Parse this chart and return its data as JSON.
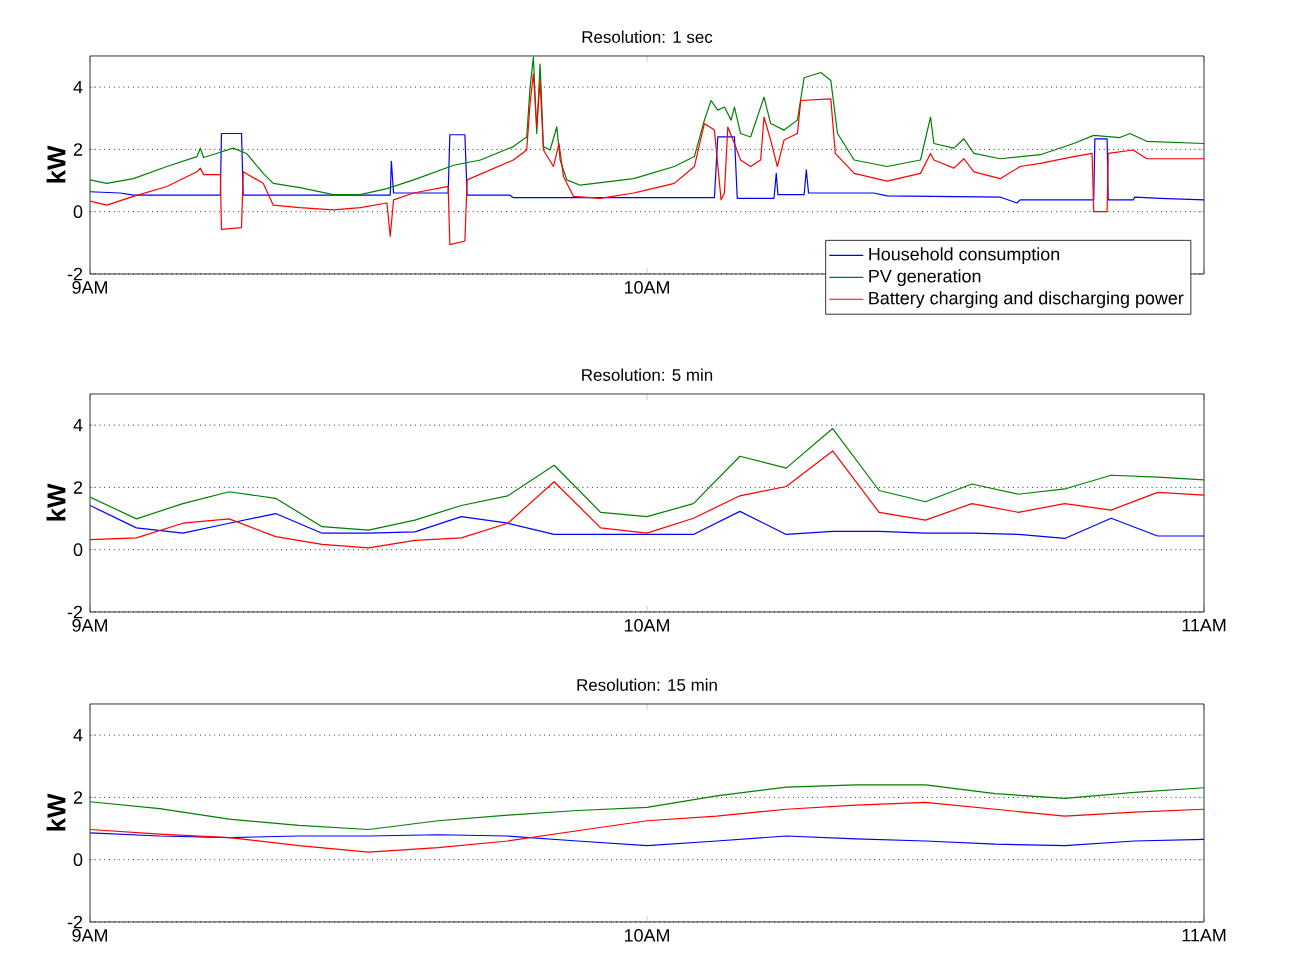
{
  "chart_data": [
    {
      "type": "line",
      "title": "Resolution: 1 sec",
      "ylabel": "kW",
      "xlim": [
        9,
        11
      ],
      "ylim": [
        -2,
        5
      ],
      "xticks": [
        {
          "value": 9,
          "label": "9AM"
        },
        {
          "value": 10,
          "label": "10AM"
        },
        {
          "value": 11,
          "label": null
        }
      ],
      "yticks": [
        -2,
        0,
        2,
        4
      ],
      "grid": "y",
      "legend": "bottom right",
      "marker": "none",
      "line_style": "solid",
      "series": [
        {
          "name": "Household consumption",
          "color": "#0000ff",
          "x": [
            9.0,
            9.054,
            9.078,
            9.234,
            9.236,
            9.272,
            9.275,
            9.539,
            9.541,
            9.545,
            9.643,
            9.646,
            9.673,
            9.677,
            9.754,
            9.76,
            10.0,
            10.121,
            10.127,
            10.157,
            10.162,
            10.228,
            10.232,
            10.235,
            10.282,
            10.286,
            10.29,
            10.407,
            10.431,
            10.634,
            10.664,
            10.67,
            10.802,
            10.804,
            10.826,
            10.828,
            10.873,
            10.876,
            10.921,
            11.0
          ],
          "values": [
            0.64,
            0.6,
            0.53,
            0.53,
            2.51,
            2.51,
            0.53,
            0.53,
            1.62,
            0.6,
            0.6,
            2.47,
            2.47,
            0.53,
            0.53,
            0.45,
            0.45,
            0.45,
            2.4,
            2.4,
            0.43,
            0.43,
            1.23,
            0.55,
            0.55,
            1.34,
            0.6,
            0.6,
            0.51,
            0.47,
            0.28,
            0.38,
            0.38,
            2.34,
            2.34,
            0.38,
            0.38,
            0.47,
            0.43,
            0.38
          ]
        },
        {
          "name": "PV generation",
          "color": "#008000",
          "x": [
            9.0,
            9.03,
            9.078,
            9.138,
            9.192,
            9.198,
            9.204,
            9.234,
            9.257,
            9.281,
            9.311,
            9.329,
            9.377,
            9.437,
            9.485,
            9.533,
            9.581,
            9.653,
            9.701,
            9.76,
            9.784,
            9.79,
            9.796,
            9.802,
            9.808,
            9.814,
            9.826,
            9.838,
            9.844,
            9.856,
            9.88,
            9.976,
            10.0,
            10.049,
            10.085,
            10.103,
            10.115,
            10.127,
            10.139,
            10.151,
            10.157,
            10.168,
            10.186,
            10.21,
            10.222,
            10.246,
            10.27,
            10.282,
            10.312,
            10.33,
            10.342,
            10.372,
            10.431,
            10.491,
            10.509,
            10.515,
            10.551,
            10.569,
            10.587,
            10.634,
            10.706,
            10.766,
            10.802,
            10.849,
            10.867,
            10.897,
            11.0
          ],
          "values": [
            1.02,
            0.91,
            1.06,
            1.45,
            1.77,
            2.04,
            1.74,
            1.91,
            2.04,
            1.87,
            1.23,
            0.91,
            0.77,
            0.55,
            0.55,
            0.74,
            1.02,
            1.49,
            1.66,
            2.09,
            2.4,
            4.0,
            4.96,
            2.51,
            4.74,
            2.09,
            1.98,
            2.72,
            1.66,
            1.02,
            0.85,
            1.06,
            1.19,
            1.45,
            1.77,
            2.94,
            3.57,
            3.26,
            3.36,
            2.94,
            3.36,
            2.51,
            2.4,
            3.68,
            2.83,
            2.62,
            2.94,
            4.3,
            4.47,
            4.21,
            2.51,
            1.66,
            1.45,
            1.66,
            3.04,
            2.19,
            2.04,
            2.34,
            1.87,
            1.7,
            1.83,
            2.19,
            2.45,
            2.38,
            2.51,
            2.26,
            2.19
          ]
        },
        {
          "name": "Battery charging and discharging power",
          "color": "#ff0000",
          "x": [
            9.0,
            9.03,
            9.078,
            9.138,
            9.192,
            9.198,
            9.204,
            9.234,
            9.236,
            9.272,
            9.275,
            9.311,
            9.329,
            9.377,
            9.437,
            9.485,
            9.533,
            9.539,
            9.545,
            9.581,
            9.643,
            9.646,
            9.673,
            9.677,
            9.76,
            9.784,
            9.79,
            9.796,
            9.802,
            9.808,
            9.814,
            9.832,
            9.842,
            9.85,
            9.868,
            9.916,
            9.976,
            10.0,
            10.049,
            10.085,
            10.103,
            10.121,
            10.133,
            10.139,
            10.145,
            10.157,
            10.168,
            10.186,
            10.204,
            10.21,
            10.222,
            10.234,
            10.246,
            10.27,
            10.276,
            10.33,
            10.338,
            10.372,
            10.431,
            10.491,
            10.509,
            10.515,
            10.551,
            10.569,
            10.587,
            10.634,
            10.67,
            10.706,
            10.766,
            10.799,
            10.802,
            10.826,
            10.828,
            10.873,
            10.897,
            11.0
          ],
          "values": [
            0.34,
            0.21,
            0.49,
            0.81,
            1.28,
            1.4,
            1.19,
            1.19,
            -0.57,
            -0.51,
            1.28,
            0.91,
            0.21,
            0.13,
            0.06,
            0.13,
            0.28,
            -0.79,
            0.38,
            0.6,
            0.81,
            -1.06,
            -0.94,
            1.02,
            1.66,
            1.98,
            3.47,
            4.43,
            2.72,
            4.21,
            1.98,
            1.45,
            2.19,
            1.13,
            0.49,
            0.43,
            0.6,
            0.7,
            0.91,
            1.45,
            2.83,
            2.62,
            0.38,
            0.6,
            2.72,
            2.19,
            1.66,
            1.45,
            1.66,
            3.04,
            2.3,
            1.45,
            2.3,
            2.51,
            3.57,
            3.62,
            1.87,
            1.23,
            0.98,
            1.23,
            1.87,
            1.66,
            1.4,
            1.7,
            1.28,
            1.06,
            1.45,
            1.55,
            1.77,
            1.87,
            0.0,
            0.0,
            1.87,
            1.98,
            1.7,
            1.7
          ]
        }
      ]
    },
    {
      "type": "line",
      "title": "Resolution: 5 min",
      "ylabel": "kW",
      "xlim": [
        9,
        11
      ],
      "ylim": [
        -2,
        5
      ],
      "xticks": [
        {
          "value": 9,
          "label": "9AM"
        },
        {
          "value": 10,
          "label": "10AM"
        },
        {
          "value": 11,
          "label": "11AM"
        }
      ],
      "yticks": [
        -2,
        0,
        2,
        4
      ],
      "grid": "y",
      "marker": "none",
      "line_style": "solid",
      "x": [
        9.0,
        9.0833,
        9.1667,
        9.25,
        9.3333,
        9.4167,
        9.5,
        9.5833,
        9.6667,
        9.75,
        9.8333,
        9.9167,
        10.0,
        10.0833,
        10.1667,
        10.25,
        10.3333,
        10.4167,
        10.5,
        10.5833,
        10.6667,
        10.75,
        10.8333,
        10.9167,
        11.0
      ],
      "series": [
        {
          "color": "#0000ff",
          "values": [
            1.42,
            0.7,
            0.53,
            0.85,
            1.16,
            0.53,
            0.53,
            0.57,
            1.06,
            0.85,
            0.49,
            0.49,
            0.49,
            0.49,
            1.23,
            0.49,
            0.59,
            0.59,
            0.53,
            0.53,
            0.49,
            0.36,
            1.01,
            0.44,
            0.44
          ]
        },
        {
          "color": "#008000",
          "values": [
            1.69,
            0.99,
            1.48,
            1.86,
            1.65,
            0.74,
            0.63,
            0.95,
            1.42,
            1.73,
            2.71,
            1.2,
            1.06,
            1.48,
            3.0,
            2.62,
            3.89,
            1.9,
            1.54,
            2.11,
            1.78,
            1.95,
            2.39,
            2.33,
            2.24
          ]
        },
        {
          "color": "#ff0000",
          "values": [
            0.32,
            0.38,
            0.85,
            0.99,
            0.42,
            0.17,
            0.06,
            0.3,
            0.38,
            0.85,
            2.18,
            0.7,
            0.53,
            1.01,
            1.73,
            2.03,
            3.17,
            1.2,
            0.95,
            1.48,
            1.2,
            1.48,
            1.27,
            1.84,
            1.75
          ]
        }
      ]
    },
    {
      "type": "line",
      "title": "Resolution: 15 min",
      "ylabel": "kW",
      "xlim": [
        9,
        11
      ],
      "ylim": [
        -2,
        5
      ],
      "xticks": [
        {
          "value": 9,
          "label": "9AM"
        },
        {
          "value": 10,
          "label": "10AM"
        },
        {
          "value": 11,
          "label": "11AM"
        }
      ],
      "yticks": [
        -2,
        0,
        2,
        4
      ],
      "grid": "y",
      "marker": "none",
      "line_style": "solid",
      "x": [
        9.0,
        9.125,
        9.25,
        9.375,
        9.5,
        9.625,
        9.75,
        9.875,
        10.0,
        10.125,
        10.25,
        10.375,
        10.5,
        10.625,
        10.75,
        10.875,
        11.0
      ],
      "series": [
        {
          "color": "#0000ff",
          "values": [
            0.86,
            0.76,
            0.71,
            0.76,
            0.76,
            0.8,
            0.76,
            0.6,
            0.45,
            0.6,
            0.76,
            0.67,
            0.6,
            0.5,
            0.45,
            0.6,
            0.65
          ]
        },
        {
          "color": "#008000",
          "values": [
            1.86,
            1.64,
            1.3,
            1.1,
            0.97,
            1.25,
            1.43,
            1.58,
            1.68,
            2.05,
            2.33,
            2.4,
            2.4,
            2.12,
            1.97,
            2.16,
            2.31
          ]
        },
        {
          "color": "#ff0000",
          "values": [
            0.97,
            0.82,
            0.71,
            0.45,
            0.24,
            0.39,
            0.6,
            0.93,
            1.25,
            1.4,
            1.62,
            1.75,
            1.84,
            1.62,
            1.4,
            1.53,
            1.62
          ]
        }
      ]
    }
  ]
}
